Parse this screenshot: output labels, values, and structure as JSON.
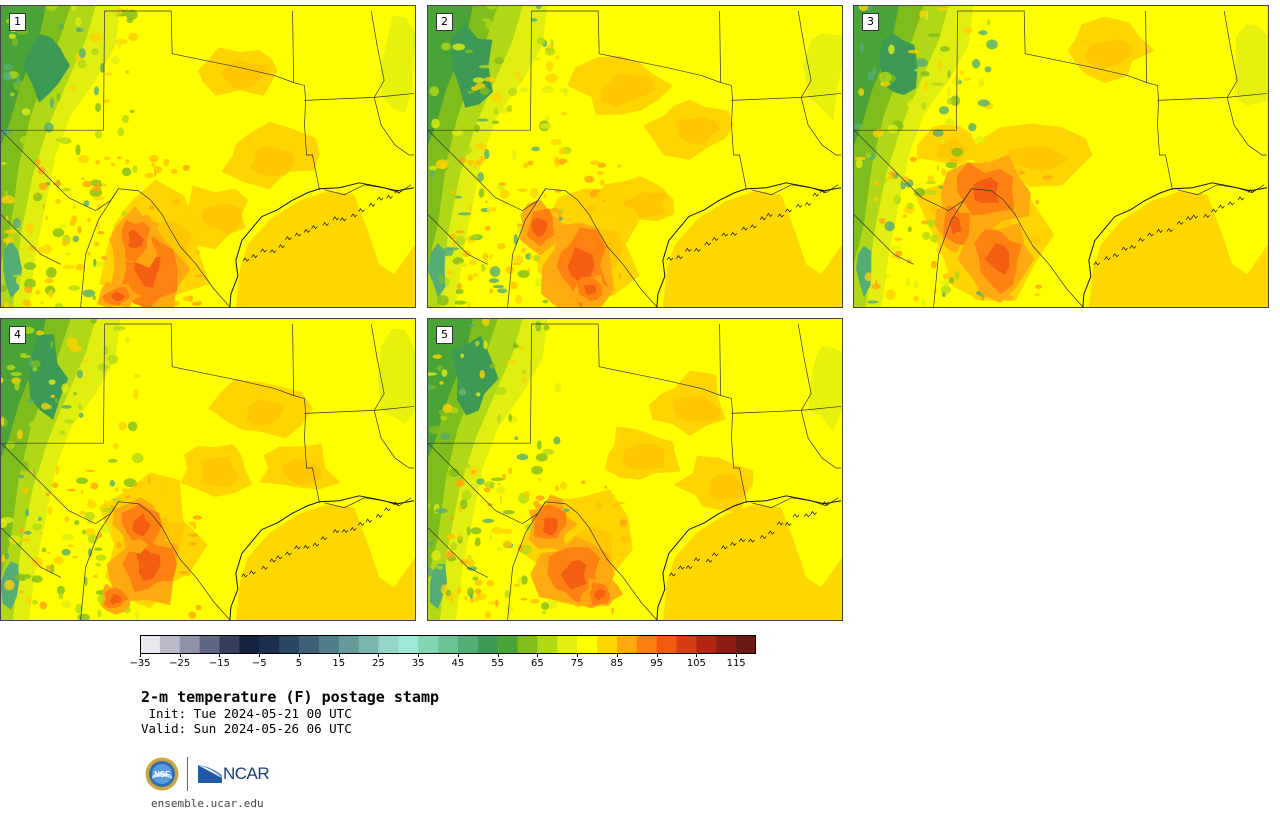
{
  "panels": [
    {
      "label": "1",
      "variant": 0
    },
    {
      "label": "2",
      "variant": 1
    },
    {
      "label": "3",
      "variant": 2
    },
    {
      "label": "4",
      "variant": 3
    },
    {
      "label": "5",
      "variant": 4
    }
  ],
  "colorbar": {
    "colors": [
      "#e8e8ee",
      "#b9b9c9",
      "#8e93a7",
      "#5e6784",
      "#35405f",
      "#15223e",
      "#1c2f4f",
      "#2a4763",
      "#3c6176",
      "#4f7d89",
      "#65999a",
      "#7bb5af",
      "#95d5c8",
      "#9de8d8",
      "#82d6b2",
      "#6cc394",
      "#54ad75",
      "#3d9a54",
      "#4aa336",
      "#7fbd1d",
      "#b1d816",
      "#e0ee10",
      "#ffff00",
      "#ffd700",
      "#ffa811",
      "#ff7e12",
      "#f35a11",
      "#d43e12",
      "#b12512",
      "#8e1b12",
      "#6a1a12"
    ],
    "ticks": [
      "−35",
      "−25",
      "−15",
      "−5",
      "5",
      "15",
      "25",
      "35",
      "45",
      "55",
      "65",
      "75",
      "85",
      "95",
      "105",
      "115"
    ]
  },
  "title": "2-m temperature (F) postage stamp",
  "init": " Init: Tue 2024-05-21 00 UTC",
  "valid": "Valid: Sun 2024-05-26 06 UTC",
  "logo_nsf": "NSF",
  "logo_ncar": "NCAR",
  "url": "ensemble.ucar.edu"
}
